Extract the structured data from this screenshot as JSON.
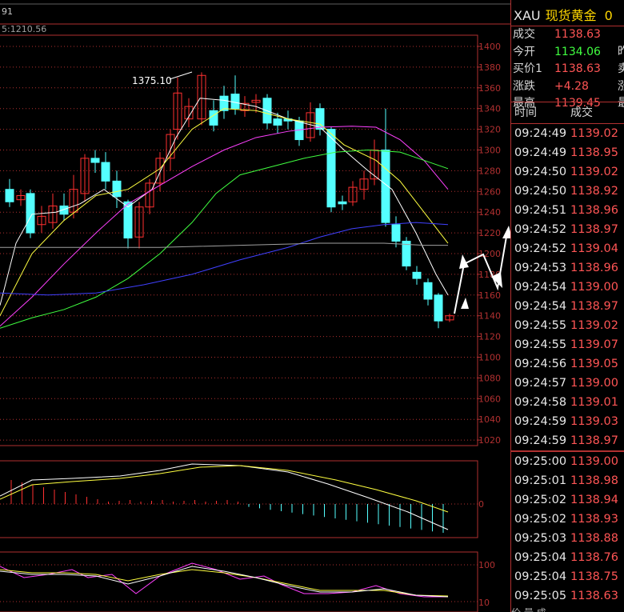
{
  "chart": {
    "top_label": "91",
    "ma_label": "5:1210.56",
    "high_label": "1375.10",
    "y_ticks": [
      "1400",
      "1380",
      "1360",
      "1340",
      "1320",
      "1300",
      "1280",
      "1260",
      "1240",
      "1220",
      "1200",
      "1180",
      "1160",
      "1140",
      "1120",
      "1100",
      "1080",
      "1060",
      "1040",
      "1020"
    ],
    "macd_tick": "0",
    "kdj_ticks": [
      "100",
      "10"
    ],
    "colors": {
      "up": "#ff3030",
      "down": "#54ffff",
      "grid": "#b03030",
      "ma1": "#ffffff",
      "ma2": "#ffff40",
      "ma3": "#ff40ff",
      "ma4": "#40ff40",
      "ma5": "#4040ff",
      "ma6": "#a0a0a0"
    }
  },
  "panel": {
    "symbol": "XAU",
    "name": "现货黄金",
    "code": "0",
    "quote": [
      {
        "key": "成交",
        "value": "1138.63",
        "color": "#ff5555",
        "key2": ""
      },
      {
        "key": "今开",
        "value": "1134.06",
        "color": "#40ff40",
        "key2": "昨"
      },
      {
        "key": "买价1",
        "value": "1138.63",
        "color": "#ff5555",
        "key2": "卖"
      },
      {
        "key": "涨跌",
        "value": "+4.28",
        "color": "#ff5555",
        "key2": "涨"
      },
      {
        "key": "最高",
        "value": "1139.45",
        "color": "#ff5555",
        "key2": "最"
      }
    ],
    "ticks_header": {
      "time": "时间",
      "price": "成交"
    },
    "ticks_a": [
      {
        "time": "09:24:49",
        "price": "1139.02"
      },
      {
        "time": "09:24:49",
        "price": "1138.95"
      },
      {
        "time": "09:24:50",
        "price": "1139.02"
      },
      {
        "time": "09:24:50",
        "price": "1138.92"
      },
      {
        "time": "09:24:51",
        "price": "1138.96"
      },
      {
        "time": "09:24:52",
        "price": "1138.97"
      },
      {
        "time": "09:24:52",
        "price": "1139.04"
      },
      {
        "time": "09:24:53",
        "price": "1138.96"
      },
      {
        "time": "09:24:54",
        "price": "1139.00"
      },
      {
        "time": "09:24:54",
        "price": "1138.97"
      },
      {
        "time": "09:24:55",
        "price": "1139.02"
      },
      {
        "time": "09:24:55",
        "price": "1139.07"
      },
      {
        "time": "09:24:56",
        "price": "1139.05"
      },
      {
        "time": "09:24:57",
        "price": "1139.00"
      },
      {
        "time": "09:24:58",
        "price": "1139.01"
      },
      {
        "time": "09:24:59",
        "price": "1139.03"
      },
      {
        "time": "09:24:59",
        "price": "1138.97"
      }
    ],
    "ticks_b": [
      {
        "time": "09:25:00",
        "price": "1139.00"
      },
      {
        "time": "09:25:01",
        "price": "1138.98"
      },
      {
        "time": "09:25:02",
        "price": "1138.94"
      },
      {
        "time": "09:25:02",
        "price": "1138.93"
      },
      {
        "time": "09:25:03",
        "price": "1138.88"
      },
      {
        "time": "09:25:04",
        "price": "1138.76"
      },
      {
        "time": "09:25:04",
        "price": "1138.75"
      },
      {
        "time": "09:25:05",
        "price": "1138.63"
      }
    ],
    "bottom_text": "价 量 成"
  }
}
